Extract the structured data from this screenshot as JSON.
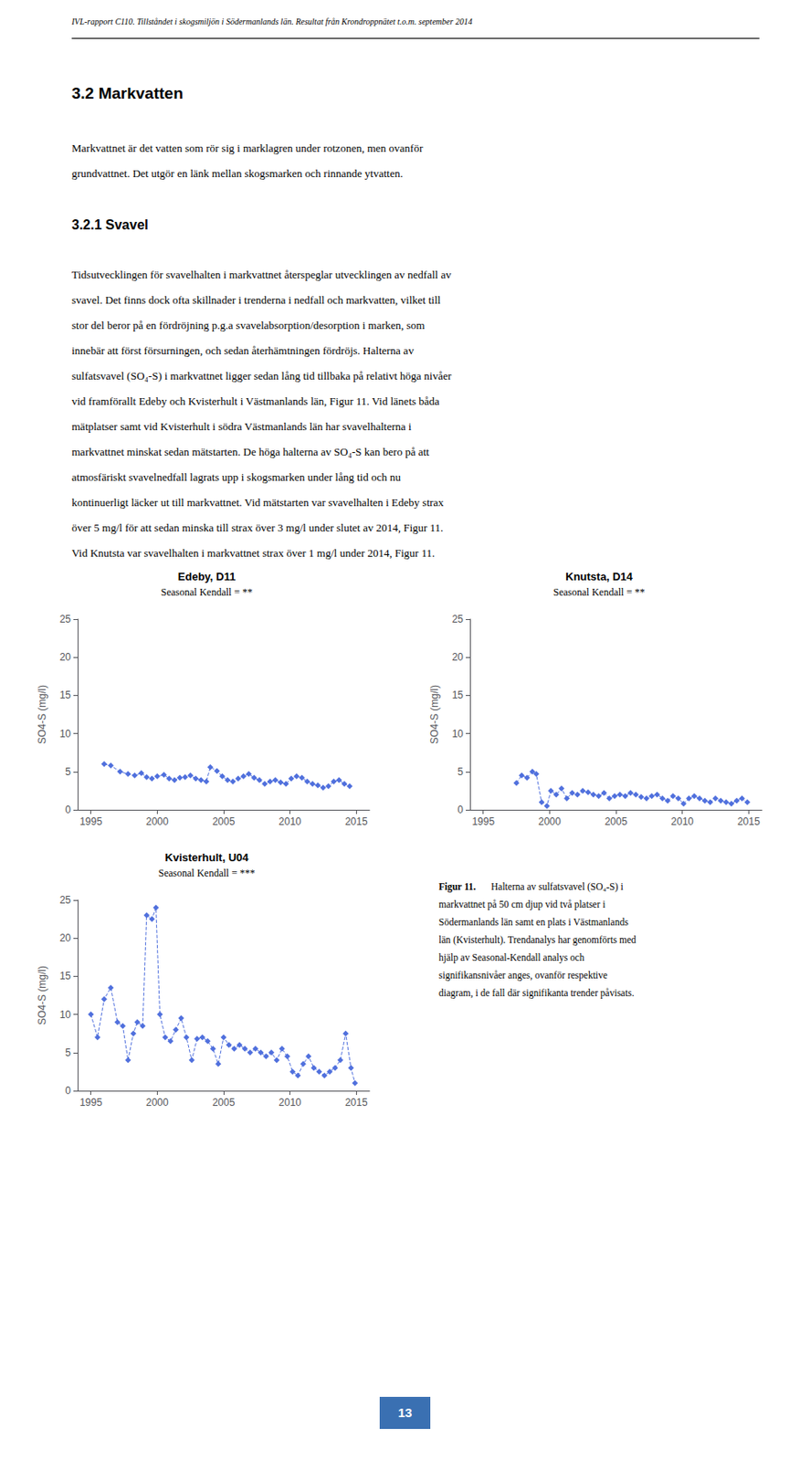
{
  "header": "IVL-rapport C110. Tillståndet i skogsmiljön i Södermanlands län. Resultat från Krondroppnätet t.o.m. september 2014",
  "section_title": "3.2  Markvatten",
  "para1": [
    "Markvattnet är det vatten som rör sig i marklagren under rotzonen, men ovanför",
    "grundvattnet. Det utgör en länk mellan skogsmarken och rinnande ytvatten."
  ],
  "subsection_title": "3.2.1  Svavel",
  "para2": [
    "Tidsutvecklingen för svavelhalten i markvattnet återspeglar utvecklingen av nedfall av",
    "svavel. Det finns dock ofta skillnader i trenderna i nedfall och markvatten, vilket till",
    "stor del beror på en fördröjning p.g.a svavelabsorption/desorption i marken, som",
    "innebär att först försurningen, och sedan återhämtningen fördröjs. Halterna av",
    "sulfatsvavel (SO₄-S) i markvattnet ligger sedan lång tid tillbaka på relativt höga nivåer",
    "vid framförallt Edeby och Kvisterhult i Västmanlands län, Figur 11. Vid länets båda",
    "mätplatser samt vid Kvisterhult i södra Västmanlands län har svavelhalterna i",
    "markvattnet minskat sedan mätstarten. De höga halterna av SO₄-S kan bero på att",
    "atmosfäriskt svavelnedfall lagrats upp i skogsmarken under lång tid och nu",
    "kontinuerligt läcker ut till markvattnet. Vid mätstarten var svavelhalten i Edeby strax",
    "över 5 mg/l för att sedan minska till strax över 3 mg/l under slutet av 2014, Figur 11.",
    "Vid Knutsta var svavelhalten i markvattnet strax över 1 mg/l under 2014, Figur 11."
  ],
  "caption_label": "Figur 11.",
  "caption_lines": [
    "Halterna av sulfatsvavel (SO₄-S) i",
    "markvattnet på 50 cm djup vid två platser i",
    "Södermanlands län samt en plats i Västmanlands",
    "län (Kvisterhult). Trendanalys har genomförts med",
    "hjälp av Seasonal-Kendall analys och",
    "signifikansnivåer anges, ovanför respektive",
    "diagram, i de fall där signifikanta trender påvisats."
  ],
  "page_number": "13",
  "chart_data": [
    {
      "type": "line",
      "title": "Edeby, D11",
      "subtitle": "Seasonal Kendall = **",
      "ylabel": "SO4-S (mg/l)",
      "marker": "diamond",
      "line_style": "dashed",
      "grid": false,
      "xlim": [
        1994,
        2016
      ],
      "xticks": [
        1995,
        2000,
        2005,
        2010,
        2015
      ],
      "ylim": [
        0,
        25
      ],
      "yticks": [
        0,
        5,
        10,
        15,
        20,
        25
      ],
      "x": [
        1996.0,
        1996.5,
        1997.2,
        1997.8,
        1998.3,
        1998.8,
        1999.2,
        1999.6,
        2000.0,
        2000.5,
        2000.9,
        2001.3,
        2001.7,
        2002.1,
        2002.5,
        2002.9,
        2003.3,
        2003.7,
        2004.0,
        2004.5,
        2004.9,
        2005.3,
        2005.7,
        2006.1,
        2006.5,
        2006.9,
        2007.3,
        2007.7,
        2008.1,
        2008.5,
        2008.9,
        2009.3,
        2009.7,
        2010.1,
        2010.5,
        2010.9,
        2011.3,
        2011.7,
        2012.1,
        2012.5,
        2012.9,
        2013.3,
        2013.7,
        2014.1,
        2014.5
      ],
      "values": [
        6.0,
        5.8,
        5.0,
        4.7,
        4.5,
        4.8,
        4.3,
        4.1,
        4.4,
        4.6,
        4.1,
        3.9,
        4.2,
        4.3,
        4.5,
        4.1,
        3.9,
        3.7,
        5.6,
        5.1,
        4.4,
        3.9,
        3.7,
        4.1,
        4.4,
        4.7,
        4.2,
        3.9,
        3.4,
        3.7,
        3.9,
        3.6,
        3.4,
        4.1,
        4.4,
        4.2,
        3.7,
        3.4,
        3.2,
        2.9,
        3.1,
        3.7,
        3.9,
        3.4,
        3.1
      ]
    },
    {
      "type": "line",
      "title": "Knutsta, D14",
      "subtitle": "Seasonal Kendall = **",
      "ylabel": "SO4-S (mg/l)",
      "marker": "diamond",
      "line_style": "dashed",
      "grid": false,
      "xlim": [
        1994,
        2016
      ],
      "xticks": [
        1995,
        2000,
        2005,
        2010,
        2015
      ],
      "ylim": [
        0,
        25
      ],
      "yticks": [
        0,
        5,
        10,
        15,
        20,
        25
      ],
      "x": [
        1997.5,
        1997.9,
        1998.3,
        1998.7,
        1999.0,
        1999.4,
        1999.8,
        2000.1,
        2000.5,
        2000.9,
        2001.3,
        2001.7,
        2002.1,
        2002.5,
        2002.9,
        2003.3,
        2003.7,
        2004.1,
        2004.5,
        2004.9,
        2005.3,
        2005.7,
        2006.1,
        2006.5,
        2006.9,
        2007.3,
        2007.7,
        2008.1,
        2008.5,
        2008.9,
        2009.3,
        2009.7,
        2010.1,
        2010.5,
        2010.9,
        2011.3,
        2011.7,
        2012.1,
        2012.5,
        2012.9,
        2013.3,
        2013.7,
        2014.1,
        2014.5,
        2014.9
      ],
      "values": [
        3.5,
        4.5,
        4.2,
        5.0,
        4.7,
        1.0,
        0.5,
        2.5,
        2.0,
        2.8,
        1.5,
        2.2,
        2.0,
        2.5,
        2.3,
        2.0,
        1.8,
        2.2,
        1.5,
        1.8,
        2.0,
        1.8,
        2.2,
        2.0,
        1.7,
        1.5,
        1.8,
        2.0,
        1.5,
        1.2,
        1.8,
        1.5,
        0.8,
        1.5,
        1.8,
        1.5,
        1.2,
        1.0,
        1.5,
        1.2,
        1.0,
        0.8,
        1.2,
        1.5,
        1.0
      ]
    },
    {
      "type": "line",
      "title": "Kvisterhult, U04",
      "subtitle": "Seasonal Kendall = ***",
      "ylabel": "SO4-S (mg/l)",
      "marker": "diamond",
      "line_style": "dashed",
      "grid": false,
      "xlim": [
        1994,
        2016
      ],
      "xticks": [
        1995,
        2000,
        2005,
        2010,
        2015
      ],
      "ylim": [
        0,
        25
      ],
      "yticks": [
        0,
        5,
        10,
        15,
        20,
        25
      ],
      "x": [
        1995.0,
        1995.5,
        1996.0,
        1996.5,
        1997.0,
        1997.4,
        1997.8,
        1998.2,
        1998.5,
        1998.9,
        1999.2,
        1999.6,
        1999.9,
        2000.2,
        2000.6,
        2001.0,
        2001.4,
        2001.8,
        2002.2,
        2002.6,
        2003.0,
        2003.4,
        2003.8,
        2004.2,
        2004.6,
        2005.0,
        2005.4,
        2005.8,
        2006.2,
        2006.6,
        2007.0,
        2007.4,
        2007.8,
        2008.2,
        2008.6,
        2009.0,
        2009.4,
        2009.8,
        2010.2,
        2010.6,
        2011.0,
        2011.4,
        2011.8,
        2012.2,
        2012.6,
        2013.0,
        2013.4,
        2013.8,
        2014.2,
        2014.6,
        2014.9
      ],
      "values": [
        10.0,
        7.0,
        12.0,
        13.5,
        9.0,
        8.5,
        4.0,
        7.5,
        9.0,
        8.5,
        23.0,
        22.5,
        24.0,
        10.0,
        7.0,
        6.5,
        8.0,
        9.5,
        7.0,
        4.0,
        6.8,
        7.0,
        6.5,
        5.5,
        3.5,
        7.0,
        6.0,
        5.5,
        6.0,
        5.5,
        5.0,
        5.5,
        5.0,
        4.5,
        5.0,
        4.0,
        5.5,
        4.5,
        2.5,
        2.0,
        3.5,
        4.5,
        3.0,
        2.5,
        2.0,
        2.5,
        3.0,
        4.0,
        7.5,
        3.0,
        1.0
      ]
    }
  ]
}
